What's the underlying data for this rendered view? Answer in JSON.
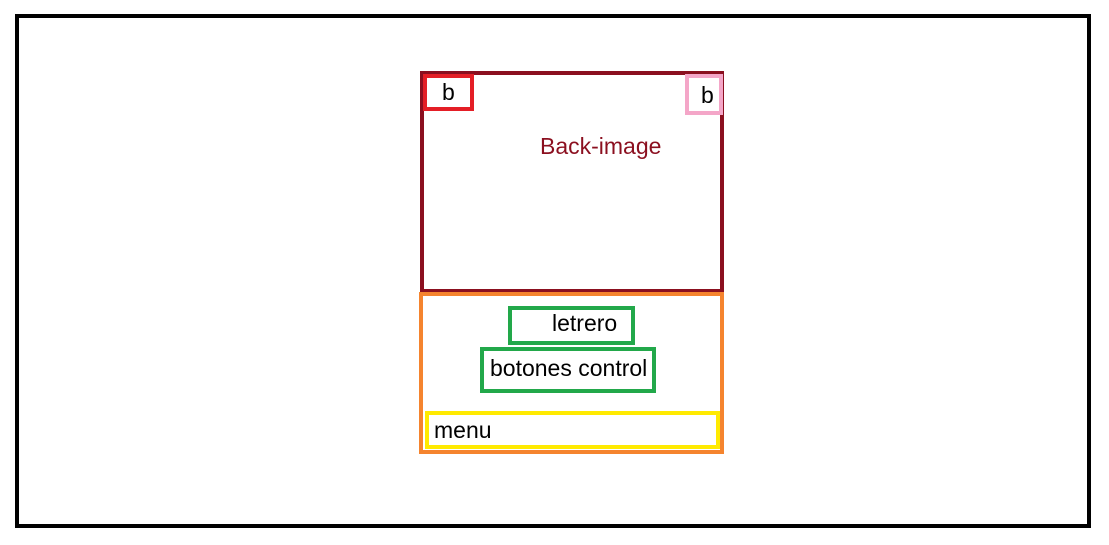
{
  "diagram": {
    "background_image": {
      "label": "Back-image",
      "color": "#8b0f1f"
    },
    "button_left": {
      "label": "b",
      "color": "#e41e26"
    },
    "button_right": {
      "label": "b",
      "color": "#f4a6c8"
    },
    "bottom_panel": {
      "color": "#f5842e"
    },
    "letrero": {
      "label": "letrero",
      "color": "#22a84a"
    },
    "botones_control": {
      "label": "botones control",
      "color": "#22a84a"
    },
    "menu": {
      "label": "menu",
      "color": "#ffea00"
    },
    "outer_frame": {
      "color": "#000000"
    }
  }
}
